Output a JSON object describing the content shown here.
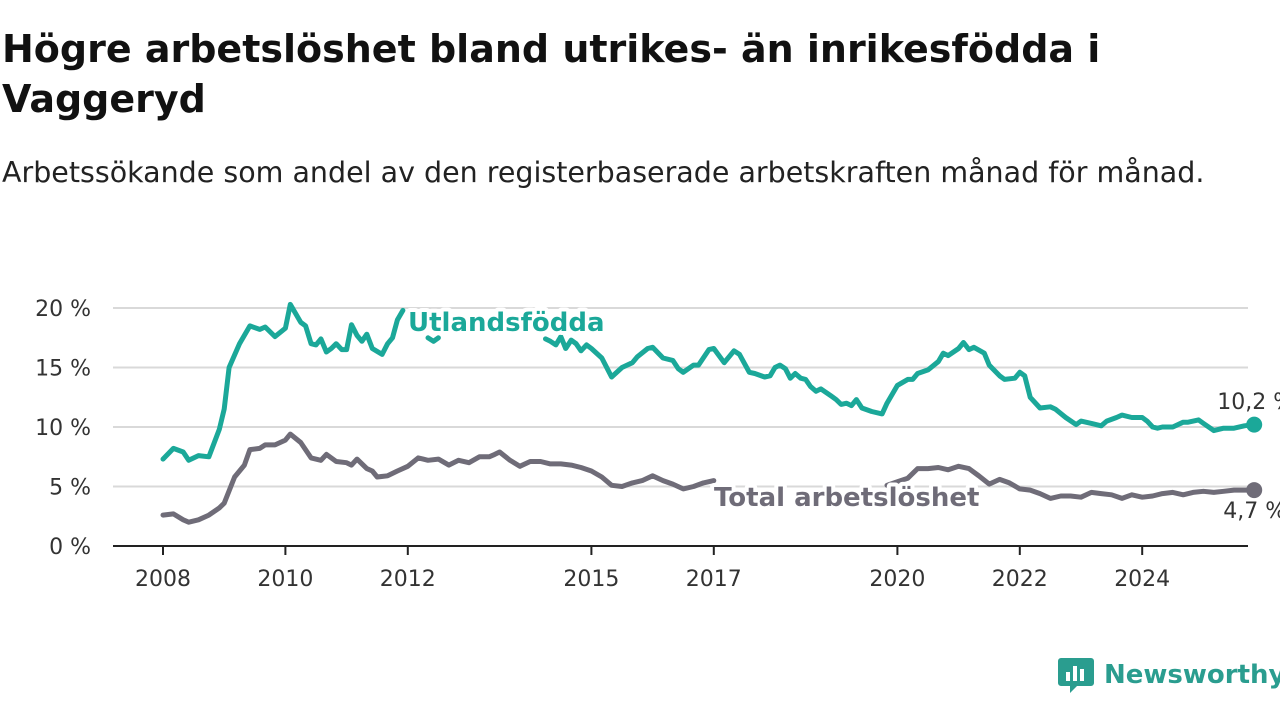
{
  "title": "Högre arbetslöshet bland utrikes- än inrikesfödda i Vaggeryd",
  "subtitle": "Arbetssökande som andel av den registerbaserade arbetskraften månad för månad.",
  "brand": "Newsworthy",
  "colors": {
    "foreign": "#1ba899",
    "total": "#6f6c78",
    "grid": "#d9d9d9",
    "axis": "#222222",
    "brand": "#2a9d8f"
  },
  "chart_data": {
    "type": "line",
    "xlim": [
      2008,
      2025
    ],
    "ylim": [
      0,
      20
    ],
    "grid": true,
    "x_ticks": [
      {
        "v": 2008,
        "label": "2008"
      },
      {
        "v": 2010,
        "label": "2010"
      },
      {
        "v": 2012,
        "label": "2012"
      },
      {
        "v": 2015,
        "label": "2015"
      },
      {
        "v": 2017,
        "label": "2017"
      },
      {
        "v": 2020,
        "label": "2020"
      },
      {
        "v": 2022,
        "label": "2022"
      },
      {
        "v": 2024,
        "label": "2024"
      }
    ],
    "y_ticks": [
      {
        "v": 0,
        "label": "0 %"
      },
      {
        "v": 5,
        "label": "5 %"
      },
      {
        "v": 10,
        "label": "10 %"
      },
      {
        "v": 15,
        "label": "15 %"
      },
      {
        "v": 20,
        "label": "20 %"
      }
    ],
    "series": [
      {
        "name": "Utlandsfödda",
        "color": "#1ba899",
        "end_label": "10,2 %",
        "points": [
          [
            2008.0,
            7.3
          ],
          [
            2008.17,
            8.2
          ],
          [
            2008.33,
            7.9
          ],
          [
            2008.42,
            7.2
          ],
          [
            2008.58,
            7.6
          ],
          [
            2008.75,
            7.5
          ],
          [
            2008.92,
            9.8
          ],
          [
            2009.0,
            11.5
          ],
          [
            2009.08,
            15.0
          ],
          [
            2009.25,
            17.0
          ],
          [
            2009.42,
            18.5
          ],
          [
            2009.58,
            18.2
          ],
          [
            2009.67,
            18.4
          ],
          [
            2009.83,
            17.6
          ],
          [
            2010.0,
            18.3
          ],
          [
            2010.08,
            20.3
          ],
          [
            2010.25,
            18.8
          ],
          [
            2010.33,
            18.5
          ],
          [
            2010.42,
            17.0
          ],
          [
            2010.5,
            16.9
          ],
          [
            2010.58,
            17.4
          ],
          [
            2010.67,
            16.3
          ],
          [
            2010.75,
            16.6
          ],
          [
            2010.83,
            17.0
          ],
          [
            2010.92,
            16.5
          ],
          [
            2011.0,
            16.5
          ],
          [
            2011.08,
            18.6
          ],
          [
            2011.17,
            17.7
          ],
          [
            2011.25,
            17.2
          ],
          [
            2011.33,
            17.8
          ],
          [
            2011.42,
            16.6
          ],
          [
            2011.58,
            16.1
          ],
          [
            2011.67,
            17.0
          ],
          [
            2011.75,
            17.5
          ],
          [
            2011.83,
            19.0
          ],
          [
            2011.92,
            19.8
          ]
        ],
        "points2": [
          [
            2012.33,
            17.5
          ],
          [
            2012.42,
            17.2
          ],
          [
            2012.5,
            17.5
          ]
        ],
        "points3": [
          [
            2014.25,
            17.4
          ],
          [
            2014.33,
            17.2
          ],
          [
            2014.42,
            16.9
          ],
          [
            2014.5,
            17.6
          ],
          [
            2014.58,
            16.6
          ],
          [
            2014.67,
            17.3
          ],
          [
            2014.75,
            17.0
          ],
          [
            2014.83,
            16.4
          ],
          [
            2014.92,
            16.9
          ],
          [
            2015.0,
            16.6
          ],
          [
            2015.17,
            15.8
          ],
          [
            2015.33,
            14.2
          ],
          [
            2015.5,
            15.0
          ],
          [
            2015.67,
            15.4
          ],
          [
            2015.75,
            15.9
          ],
          [
            2015.92,
            16.6
          ],
          [
            2016.0,
            16.7
          ],
          [
            2016.17,
            15.8
          ],
          [
            2016.33,
            15.6
          ],
          [
            2016.42,
            14.9
          ],
          [
            2016.5,
            14.6
          ],
          [
            2016.67,
            15.2
          ],
          [
            2016.75,
            15.2
          ],
          [
            2016.92,
            16.5
          ],
          [
            2017.0,
            16.6
          ],
          [
            2017.17,
            15.4
          ],
          [
            2017.33,
            16.4
          ],
          [
            2017.42,
            16.1
          ],
          [
            2017.58,
            14.6
          ],
          [
            2017.67,
            14.5
          ],
          [
            2017.83,
            14.2
          ],
          [
            2017.92,
            14.3
          ],
          [
            2018.0,
            15.0
          ],
          [
            2018.08,
            15.2
          ],
          [
            2018.17,
            14.9
          ],
          [
            2018.25,
            14.1
          ],
          [
            2018.33,
            14.5
          ],
          [
            2018.42,
            14.1
          ],
          [
            2018.5,
            14.0
          ],
          [
            2018.58,
            13.4
          ],
          [
            2018.67,
            13.0
          ],
          [
            2018.75,
            13.2
          ],
          [
            2018.92,
            12.6
          ],
          [
            2019.0,
            12.3
          ],
          [
            2019.08,
            11.9
          ],
          [
            2019.17,
            12.0
          ],
          [
            2019.25,
            11.8
          ],
          [
            2019.33,
            12.3
          ],
          [
            2019.42,
            11.6
          ],
          [
            2019.58,
            11.3
          ],
          [
            2019.75,
            11.1
          ],
          [
            2019.83,
            12.0
          ],
          [
            2020.0,
            13.5
          ],
          [
            2020.17,
            14.0
          ],
          [
            2020.25,
            14.0
          ],
          [
            2020.33,
            14.5
          ],
          [
            2020.5,
            14.8
          ],
          [
            2020.67,
            15.5
          ],
          [
            2020.75,
            16.2
          ],
          [
            2020.83,
            16.0
          ],
          [
            2021.0,
            16.6
          ],
          [
            2021.08,
            17.1
          ],
          [
            2021.17,
            16.5
          ],
          [
            2021.25,
            16.7
          ],
          [
            2021.42,
            16.2
          ],
          [
            2021.5,
            15.2
          ],
          [
            2021.67,
            14.3
          ],
          [
            2021.75,
            14.0
          ],
          [
            2021.92,
            14.1
          ],
          [
            2022.0,
            14.6
          ],
          [
            2022.08,
            14.3
          ],
          [
            2022.17,
            12.5
          ],
          [
            2022.33,
            11.6
          ],
          [
            2022.5,
            11.7
          ],
          [
            2022.58,
            11.5
          ],
          [
            2022.75,
            10.8
          ],
          [
            2022.92,
            10.2
          ],
          [
            2023.0,
            10.5
          ],
          [
            2023.17,
            10.3
          ],
          [
            2023.33,
            10.1
          ],
          [
            2023.42,
            10.5
          ],
          [
            2023.58,
            10.8
          ],
          [
            2023.67,
            11.0
          ],
          [
            2023.83,
            10.8
          ],
          [
            2024.0,
            10.8
          ],
          [
            2024.08,
            10.5
          ],
          [
            2024.17,
            10.0
          ],
          [
            2024.25,
            9.9
          ],
          [
            2024.33,
            10.0
          ],
          [
            2024.5,
            10.0
          ],
          [
            2024.67,
            10.4
          ],
          [
            2024.75,
            10.4
          ],
          [
            2024.92,
            10.6
          ],
          [
            2025.0,
            10.3
          ],
          [
            2025.17,
            9.7
          ],
          [
            2025.33,
            9.9
          ],
          [
            2025.5,
            9.9
          ],
          [
            2025.67,
            10.1
          ],
          [
            2025.83,
            10.2
          ]
        ]
      },
      {
        "name": "Total arbetslöshet",
        "color": "#6f6c78",
        "end_label": "4,7 %",
        "points": [
          [
            2008.0,
            2.6
          ],
          [
            2008.17,
            2.7
          ],
          [
            2008.33,
            2.2
          ],
          [
            2008.42,
            2.0
          ],
          [
            2008.58,
            2.2
          ],
          [
            2008.75,
            2.6
          ],
          [
            2008.92,
            3.2
          ],
          [
            2009.0,
            3.6
          ],
          [
            2009.17,
            5.8
          ],
          [
            2009.33,
            6.8
          ],
          [
            2009.42,
            8.1
          ],
          [
            2009.58,
            8.2
          ],
          [
            2009.67,
            8.5
          ],
          [
            2009.83,
            8.5
          ],
          [
            2010.0,
            8.9
          ],
          [
            2010.08,
            9.4
          ],
          [
            2010.25,
            8.7
          ],
          [
            2010.42,
            7.4
          ],
          [
            2010.58,
            7.2
          ],
          [
            2010.67,
            7.7
          ],
          [
            2010.83,
            7.1
          ],
          [
            2011.0,
            7.0
          ],
          [
            2011.08,
            6.8
          ],
          [
            2011.17,
            7.3
          ],
          [
            2011.33,
            6.5
          ],
          [
            2011.42,
            6.3
          ],
          [
            2011.5,
            5.8
          ],
          [
            2011.67,
            5.9
          ],
          [
            2011.83,
            6.3
          ],
          [
            2012.0,
            6.7
          ],
          [
            2012.17,
            7.4
          ],
          [
            2012.25,
            7.3
          ],
          [
            2012.33,
            7.2
          ],
          [
            2012.5,
            7.3
          ],
          [
            2012.67,
            6.8
          ],
          [
            2012.83,
            7.2
          ],
          [
            2013.0,
            7.0
          ],
          [
            2013.17,
            7.5
          ],
          [
            2013.33,
            7.5
          ],
          [
            2013.42,
            7.7
          ],
          [
            2013.5,
            7.9
          ],
          [
            2013.67,
            7.2
          ],
          [
            2013.83,
            6.7
          ],
          [
            2014.0,
            7.1
          ],
          [
            2014.17,
            7.1
          ],
          [
            2014.33,
            6.9
          ],
          [
            2014.5,
            6.9
          ],
          [
            2014.67,
            6.8
          ],
          [
            2014.83,
            6.6
          ],
          [
            2015.0,
            6.3
          ],
          [
            2015.17,
            5.8
          ],
          [
            2015.33,
            5.1
          ],
          [
            2015.5,
            5.0
          ],
          [
            2015.67,
            5.3
          ],
          [
            2015.83,
            5.5
          ],
          [
            2016.0,
            5.9
          ],
          [
            2016.17,
            5.5
          ],
          [
            2016.33,
            5.2
          ],
          [
            2016.5,
            4.8
          ],
          [
            2016.67,
            5.0
          ],
          [
            2016.83,
            5.3
          ],
          [
            2017.0,
            5.5
          ]
        ],
        "points2": [
          [
            2019.83,
            5.1
          ],
          [
            2020.0,
            5.4
          ],
          [
            2020.17,
            5.7
          ],
          [
            2020.33,
            6.5
          ],
          [
            2020.5,
            6.5
          ],
          [
            2020.67,
            6.6
          ],
          [
            2020.83,
            6.4
          ],
          [
            2021.0,
            6.7
          ],
          [
            2021.17,
            6.5
          ],
          [
            2021.33,
            5.9
          ],
          [
            2021.5,
            5.2
          ],
          [
            2021.67,
            5.6
          ],
          [
            2021.83,
            5.3
          ],
          [
            2022.0,
            4.8
          ],
          [
            2022.17,
            4.7
          ],
          [
            2022.33,
            4.4
          ],
          [
            2022.5,
            4.0
          ],
          [
            2022.67,
            4.2
          ],
          [
            2022.83,
            4.2
          ],
          [
            2023.0,
            4.1
          ],
          [
            2023.17,
            4.5
          ],
          [
            2023.33,
            4.4
          ],
          [
            2023.5,
            4.3
          ],
          [
            2023.67,
            4.0
          ],
          [
            2023.83,
            4.3
          ],
          [
            2024.0,
            4.1
          ],
          [
            2024.17,
            4.2
          ],
          [
            2024.33,
            4.4
          ],
          [
            2024.5,
            4.5
          ],
          [
            2024.67,
            4.3
          ],
          [
            2024.83,
            4.5
          ],
          [
            2025.0,
            4.6
          ],
          [
            2025.17,
            4.5
          ],
          [
            2025.33,
            4.6
          ],
          [
            2025.5,
            4.7
          ],
          [
            2025.67,
            4.7
          ],
          [
            2025.83,
            4.7
          ]
        ]
      }
    ]
  }
}
